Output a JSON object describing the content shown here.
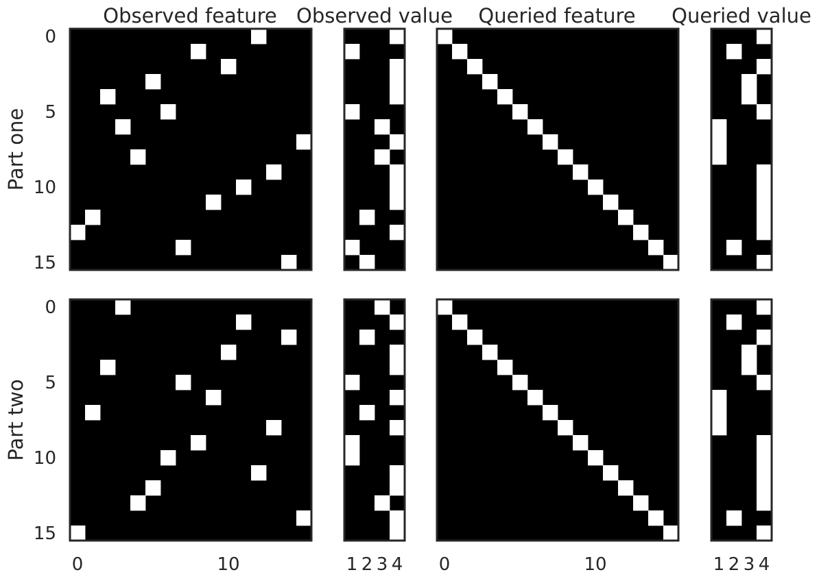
{
  "chart_data": {
    "type": "heatmap",
    "columns": [
      {
        "title": "Observed feature",
        "n_cols": 16
      },
      {
        "title": "Observed value",
        "n_cols": 4
      },
      {
        "title": "Queried feature",
        "n_cols": 16
      },
      {
        "title": "Queried value",
        "n_cols": 4
      }
    ],
    "rows": [
      {
        "label": "Part one",
        "observed_feature": [
          12,
          8,
          10,
          5,
          2,
          6,
          3,
          15,
          4,
          13,
          11,
          9,
          1,
          0,
          7,
          14
        ],
        "observed_value": [
          4,
          1,
          4,
          4,
          4,
          1,
          3,
          4,
          3,
          4,
          4,
          4,
          2,
          4,
          1,
          2
        ],
        "queried_feature": [
          0,
          1,
          2,
          3,
          4,
          5,
          6,
          7,
          8,
          9,
          10,
          11,
          12,
          13,
          14,
          15
        ],
        "queried_value": [
          4,
          2,
          4,
          3,
          3,
          4,
          1,
          1,
          1,
          4,
          4,
          4,
          4,
          4,
          2,
          4
        ]
      },
      {
        "label": "Part two",
        "observed_feature": [
          3,
          11,
          14,
          10,
          2,
          7,
          9,
          1,
          13,
          8,
          6,
          12,
          5,
          4,
          15,
          0
        ],
        "observed_value": [
          3,
          4,
          2,
          4,
          4,
          1,
          4,
          2,
          4,
          1,
          1,
          4,
          4,
          3,
          4,
          4
        ],
        "queried_feature": [
          0,
          1,
          2,
          3,
          4,
          5,
          6,
          7,
          8,
          9,
          10,
          11,
          12,
          13,
          14,
          15
        ],
        "queried_value": [
          4,
          2,
          4,
          3,
          3,
          4,
          1,
          1,
          1,
          4,
          4,
          4,
          4,
          4,
          2,
          4
        ]
      }
    ],
    "y_ticks": [
      "0",
      "5",
      "10",
      "15"
    ],
    "feature_x_ticks": [
      "0",
      "10"
    ],
    "value_x_ticks": [
      "1",
      "2",
      "3",
      "4"
    ],
    "colormap": {
      "on": "#ffffff",
      "off": "#000000"
    },
    "frame_color": "#262626",
    "grid": false
  }
}
